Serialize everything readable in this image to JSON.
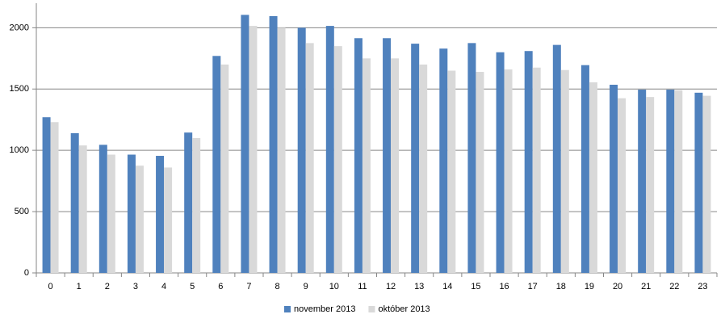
{
  "chart_data": {
    "type": "bar",
    "categories": [
      "0",
      "1",
      "2",
      "3",
      "4",
      "5",
      "6",
      "7",
      "8",
      "9",
      "10",
      "11",
      "12",
      "13",
      "14",
      "15",
      "16",
      "17",
      "18",
      "19",
      "20",
      "21",
      "22",
      "23"
    ],
    "series": [
      {
        "name": "november 2013",
        "color": "#4f81bd",
        "values": [
          1270,
          1140,
          1045,
          965,
          955,
          1145,
          1770,
          2105,
          2095,
          2000,
          2015,
          1915,
          1915,
          1870,
          1830,
          1875,
          1800,
          1810,
          1860,
          1695,
          1535,
          1495,
          1495,
          1470
        ]
      },
      {
        "name": "október 2013",
        "color": "#d9d9d9",
        "values": [
          1230,
          1040,
          965,
          875,
          860,
          1100,
          1700,
          2015,
          2000,
          1875,
          1850,
          1750,
          1750,
          1700,
          1650,
          1640,
          1660,
          1675,
          1655,
          1555,
          1425,
          1435,
          1490,
          1445
        ]
      }
    ],
    "ylim": [
      0,
      2200
    ],
    "yticks": [
      0,
      500,
      1000,
      1500,
      2000
    ],
    "grid": true,
    "legend": "bottom"
  }
}
